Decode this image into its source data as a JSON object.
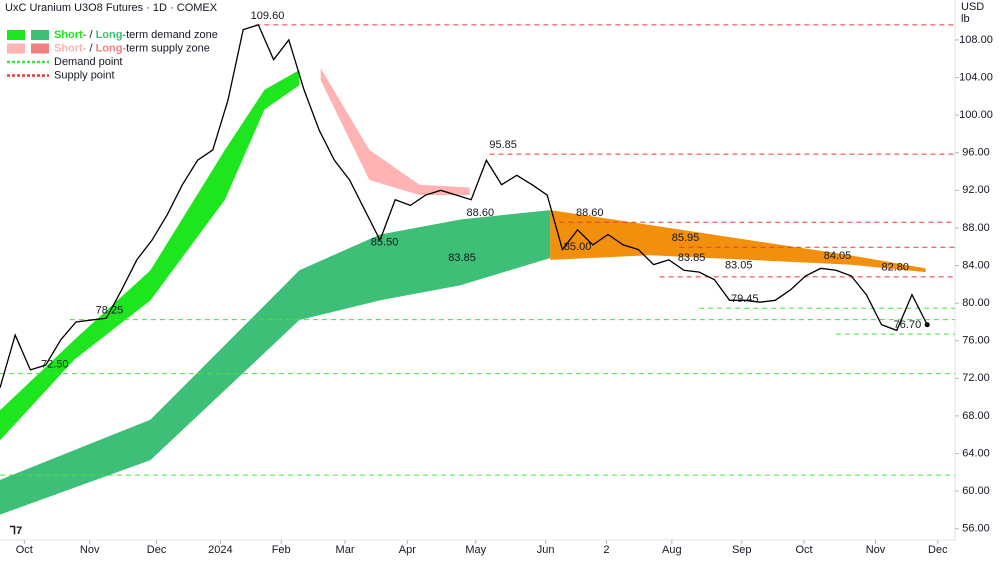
{
  "chart_data": {
    "type": "line",
    "title": "UxC Uranium U3O8 Futures · 1D · COMEX",
    "currency": "USD",
    "unit": "lb",
    "legend": [
      {
        "parts": [
          "Short-",
          " / ",
          "Long-",
          "term demand zone"
        ],
        "colors": [
          "#1ee61e",
          "#3dbf77"
        ]
      },
      {
        "parts": [
          "Short-",
          " / ",
          "Long-",
          "term supply zone"
        ],
        "colors": [
          "#ffb3b3",
          "#f08080"
        ]
      },
      {
        "parts": [
          "Demand point"
        ],
        "colors": [
          "#3ee63e"
        ]
      },
      {
        "parts": [
          "Supply point"
        ],
        "colors": [
          "#e83a3a"
        ]
      }
    ],
    "x": [
      0,
      1,
      2,
      3,
      4,
      5,
      6,
      7,
      8,
      9,
      10,
      11,
      12,
      13,
      14,
      15,
      16,
      17,
      18,
      19,
      20,
      21,
      22,
      23,
      24,
      25,
      26,
      27,
      28,
      29,
      30,
      31,
      32,
      33,
      34,
      35,
      36,
      37,
      38,
      39,
      40,
      41,
      42,
      43,
      44,
      45,
      46,
      47,
      48,
      49,
      50,
      51,
      52,
      53,
      54,
      55,
      56,
      57,
      58,
      59,
      60,
      61
    ],
    "series": [
      {
        "color": "#000000",
        "values": [
          71.0,
          76.6,
          72.9,
          73.4,
          76.1,
          78.0,
          78.2,
          78.4,
          81.4,
          84.6,
          86.7,
          89.4,
          92.6,
          95.2,
          96.3,
          101.6,
          109.1,
          109.6,
          105.9,
          108.0,
          102.7,
          98.4,
          95.2,
          93.1,
          89.9,
          86.7,
          91.0,
          90.4,
          91.5,
          92.0,
          91.5,
          91.0,
          95.2,
          92.6,
          93.6,
          92.6,
          91.5,
          85.7,
          87.8,
          86.2,
          87.3,
          86.2,
          85.7,
          84.1,
          84.6,
          83.5,
          83.3,
          82.5,
          80.3,
          80.3,
          80.1,
          80.3,
          81.4,
          82.9,
          83.7,
          83.5,
          82.9,
          80.9,
          77.7,
          77.1,
          80.9,
          77.7
        ]
      }
    ],
    "zones": [
      {
        "color": "#3dbf77",
        "x": [
          0,
          9.9,
          19.7,
          25,
          30.3,
          36.2
        ],
        "lower": [
          57.5,
          63.3,
          78.2,
          80.3,
          81.9,
          84.8
        ],
        "upper": [
          61.2,
          67.6,
          83.5,
          87.3,
          88.9,
          89.9
        ]
      },
      {
        "color": "#f2900e",
        "x": [
          36.2,
          42.8,
          49.3,
          55.9,
          60.9
        ],
        "lower": [
          84.6,
          85.1,
          84.6,
          84.1,
          83.3
        ],
        "upper": [
          89.9,
          88.3,
          86.7,
          85.1,
          83.7
        ]
      },
      {
        "color": "#1ee61e",
        "x": [
          0,
          4.9,
          9.9,
          14.8,
          17.4,
          19.7
        ],
        "lower": [
          65.4,
          74.0,
          80.3,
          91.0,
          100.6,
          103.2
        ],
        "upper": [
          68.6,
          76.1,
          83.5,
          96.3,
          102.7,
          104.8
        ]
      },
      {
        "color": "#ffb3b3",
        "x": [
          21.1,
          24.3,
          27.6,
          30.9
        ],
        "lower": [
          103.7,
          93.1,
          91.5,
          91.5
        ],
        "upper": [
          105.0,
          96.3,
          92.6,
          92.3
        ]
      }
    ],
    "demand_points": {
      "color": "#3ee63e",
      "x": [
        0,
        0,
        4.6,
        46,
        55
      ],
      "values": [
        61.7,
        72.5,
        78.25,
        79.45,
        76.7
      ]
    },
    "supply_points": {
      "color": "#e83a3a",
      "x": [
        16.8,
        32.2,
        36.8,
        44.7,
        43.4
      ],
      "values": [
        109.6,
        95.85,
        88.6,
        85.95,
        82.8
      ]
    },
    "annotations": {
      "x": [
        17.6,
        33.1,
        31.6,
        38.8,
        25.3,
        30.4,
        38.0,
        45.1,
        45.5,
        48.6,
        49.0,
        55.1,
        58.9,
        59.7,
        3.6,
        7.2
      ],
      "values": [
        109.6,
        95.85,
        88.6,
        88.6,
        85.5,
        83.85,
        85.0,
        85.95,
        83.85,
        83.05,
        79.45,
        84.05,
        82.8,
        76.7,
        72.5,
        78.25
      ],
      "value_labels": [
        "109.60",
        "95.85",
        "88.60",
        "88.60",
        "85.50",
        "83.85",
        "85.00",
        "85.95",
        "83.85",
        "83.05",
        "79.45",
        "84.05",
        "82.80",
        "76.70",
        "72.50",
        "78.25"
      ]
    },
    "xlim": [
      0,
      62.83
    ],
    "xticks": [
      {
        "value": 1.6,
        "label": "Oct"
      },
      {
        "value": 5.9,
        "label": "Nov"
      },
      {
        "value": 10.3,
        "label": "Dec"
      },
      {
        "value": 14.5,
        "label": "2024"
      },
      {
        "value": 18.5,
        "label": "Feb"
      },
      {
        "value": 22.7,
        "label": "Mar"
      },
      {
        "value": 26.8,
        "label": "Apr"
      },
      {
        "value": 31.3,
        "label": "May"
      },
      {
        "value": 35.9,
        "label": "Jun"
      },
      {
        "value": 39.9,
        "label": "2"
      },
      {
        "value": 44.2,
        "label": "Aug"
      },
      {
        "value": 48.8,
        "label": "Sep"
      },
      {
        "value": 52.9,
        "label": "Oct"
      },
      {
        "value": 57.6,
        "label": "Nov"
      },
      {
        "value": 61.7,
        "label": "Dec"
      }
    ],
    "ylim": [
      54.8,
      112.25
    ],
    "yticks": [
      {
        "value": 56,
        "label": "56.00"
      },
      {
        "value": 60,
        "label": "60.00"
      },
      {
        "value": 64,
        "label": "64.00"
      },
      {
        "value": 68,
        "label": "68.00"
      },
      {
        "value": 72,
        "label": "72.00"
      },
      {
        "value": 76,
        "label": "76.00"
      },
      {
        "value": 80,
        "label": "80.00"
      },
      {
        "value": 84,
        "label": "84.00"
      },
      {
        "value": 88,
        "label": "88.00"
      },
      {
        "value": 92,
        "label": "92.00"
      },
      {
        "value": 96,
        "label": "96.00"
      },
      {
        "value": 100,
        "label": "100.00"
      },
      {
        "value": 104,
        "label": "104.00"
      },
      {
        "value": 108,
        "label": "108.00"
      }
    ]
  }
}
